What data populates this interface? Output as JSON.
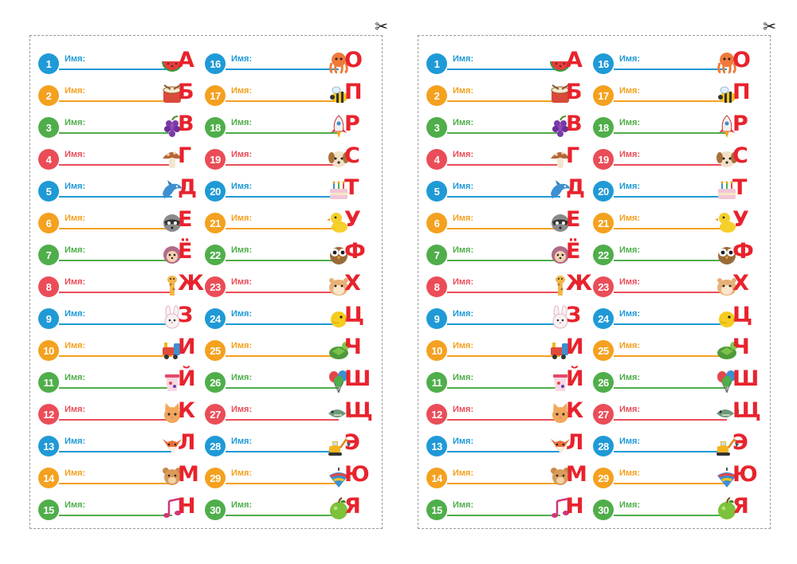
{
  "scissors_glyph": "✂",
  "name_label": "Имя:",
  "colors": {
    "blue": "#1f9ad6",
    "orange": "#f4a11f",
    "green": "#4fae4a",
    "red": "#ea4d58",
    "letter": "#e8232d"
  },
  "cycle": [
    "blue",
    "orange",
    "green",
    "red"
  ],
  "sheets": [
    {
      "columns": [
        [
          {
            "num": "1",
            "letter": "А",
            "icon": "watermelon-icon"
          },
          {
            "num": "2",
            "letter": "Б",
            "icon": "drum-icon"
          },
          {
            "num": "3",
            "letter": "В",
            "icon": "grapes-icon"
          },
          {
            "num": "4",
            "letter": "Г",
            "icon": "mushroom-icon"
          },
          {
            "num": "5",
            "letter": "Д",
            "icon": "dolphin-icon"
          },
          {
            "num": "6",
            "letter": "Е",
            "icon": "raccoon-icon"
          },
          {
            "num": "7",
            "letter": "Ё",
            "icon": "hedgehog-icon"
          },
          {
            "num": "8",
            "letter": "Ж",
            "icon": "giraffe-icon"
          },
          {
            "num": "9",
            "letter": "З",
            "icon": "bunny-icon"
          },
          {
            "num": "10",
            "letter": "И",
            "icon": "toy-train-icon"
          },
          {
            "num": "11",
            "letter": "Й",
            "icon": "yogurt-icon"
          },
          {
            "num": "12",
            "letter": "К",
            "icon": "cat-icon"
          },
          {
            "num": "13",
            "letter": "Л",
            "icon": "fox-icon"
          },
          {
            "num": "14",
            "letter": "М",
            "icon": "teddy-bear-icon"
          },
          {
            "num": "15",
            "letter": "Н",
            "icon": "music-notes-icon"
          }
        ],
        [
          {
            "num": "16",
            "letter": "О",
            "icon": "octopus-icon"
          },
          {
            "num": "17",
            "letter": "П",
            "icon": "bee-icon"
          },
          {
            "num": "18",
            "letter": "Р",
            "icon": "rocket-icon"
          },
          {
            "num": "19",
            "letter": "С",
            "icon": "puppy-icon"
          },
          {
            "num": "20",
            "letter": "Т",
            "icon": "cake-icon"
          },
          {
            "num": "21",
            "letter": "У",
            "icon": "duckling-icon"
          },
          {
            "num": "22",
            "letter": "Ф",
            "icon": "owl-icon"
          },
          {
            "num": "23",
            "letter": "Х",
            "icon": "hamster-icon"
          },
          {
            "num": "24",
            "letter": "Ц",
            "icon": "chick-icon"
          },
          {
            "num": "25",
            "letter": "Ч",
            "icon": "turtle-icon"
          },
          {
            "num": "26",
            "letter": "Ш",
            "icon": "balloons-icon"
          },
          {
            "num": "27",
            "letter": "Щ",
            "icon": "pike-fish-icon"
          },
          {
            "num": "28",
            "letter": "Э",
            "icon": "excavator-icon"
          },
          {
            "num": "29",
            "letter": "Ю",
            "icon": "spinning-top-icon"
          },
          {
            "num": "30",
            "letter": "Я",
            "icon": "apple-icon"
          }
        ]
      ]
    },
    {
      "columns": [
        [
          {
            "num": "1",
            "letter": "А",
            "icon": "watermelon-icon"
          },
          {
            "num": "2",
            "letter": "Б",
            "icon": "drum-icon"
          },
          {
            "num": "3",
            "letter": "В",
            "icon": "grapes-icon"
          },
          {
            "num": "4",
            "letter": "Г",
            "icon": "mushroom-icon"
          },
          {
            "num": "5",
            "letter": "Д",
            "icon": "dolphin-icon"
          },
          {
            "num": "6",
            "letter": "Е",
            "icon": "raccoon-icon"
          },
          {
            "num": "7",
            "letter": "Ё",
            "icon": "hedgehog-icon"
          },
          {
            "num": "8",
            "letter": "Ж",
            "icon": "giraffe-icon"
          },
          {
            "num": "9",
            "letter": "З",
            "icon": "bunny-icon"
          },
          {
            "num": "10",
            "letter": "И",
            "icon": "toy-train-icon"
          },
          {
            "num": "11",
            "letter": "Й",
            "icon": "yogurt-icon"
          },
          {
            "num": "12",
            "letter": "К",
            "icon": "cat-icon"
          },
          {
            "num": "13",
            "letter": "Л",
            "icon": "fox-icon"
          },
          {
            "num": "14",
            "letter": "М",
            "icon": "teddy-bear-icon"
          },
          {
            "num": "15",
            "letter": "Н",
            "icon": "music-notes-icon"
          }
        ],
        [
          {
            "num": "16",
            "letter": "О",
            "icon": "octopus-icon"
          },
          {
            "num": "17",
            "letter": "П",
            "icon": "bee-icon"
          },
          {
            "num": "18",
            "letter": "Р",
            "icon": "rocket-icon"
          },
          {
            "num": "19",
            "letter": "С",
            "icon": "puppy-icon"
          },
          {
            "num": "20",
            "letter": "Т",
            "icon": "cake-icon"
          },
          {
            "num": "21",
            "letter": "У",
            "icon": "duckling-icon"
          },
          {
            "num": "22",
            "letter": "Ф",
            "icon": "owl-icon"
          },
          {
            "num": "23",
            "letter": "Х",
            "icon": "hamster-icon"
          },
          {
            "num": "24",
            "letter": "Ц",
            "icon": "chick-icon"
          },
          {
            "num": "25",
            "letter": "Ч",
            "icon": "turtle-icon"
          },
          {
            "num": "26",
            "letter": "Ш",
            "icon": "balloons-icon"
          },
          {
            "num": "27",
            "letter": "Щ",
            "icon": "pike-fish-icon"
          },
          {
            "num": "28",
            "letter": "Э",
            "icon": "excavator-icon"
          },
          {
            "num": "29",
            "letter": "Ю",
            "icon": "spinning-top-icon"
          },
          {
            "num": "30",
            "letter": "Я",
            "icon": "apple-icon"
          }
        ]
      ]
    }
  ]
}
